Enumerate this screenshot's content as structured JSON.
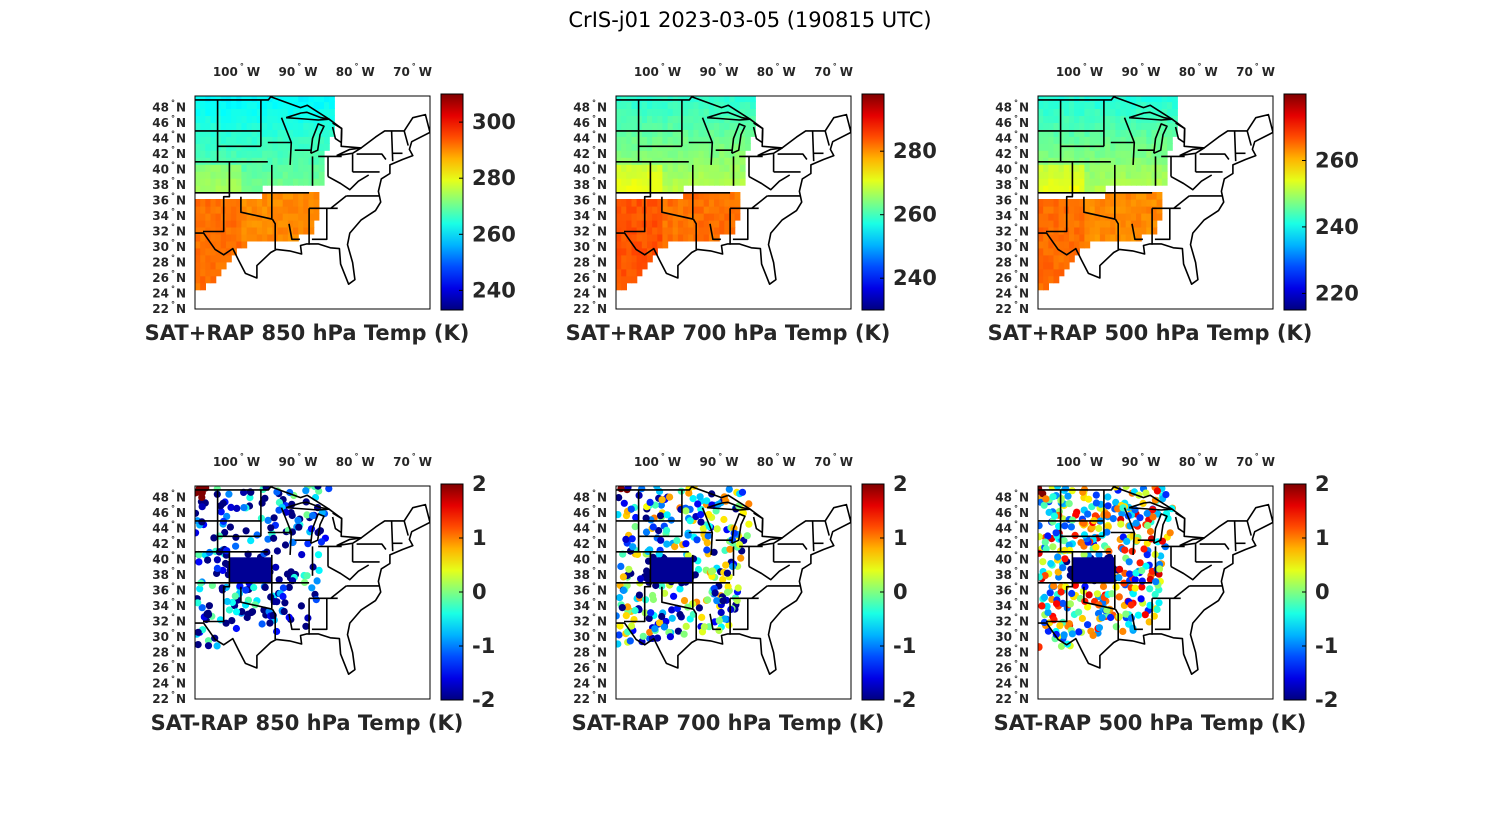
{
  "figure": {
    "title": "CrIS-j01 2023-03-05 (190815 UTC)"
  },
  "colormap": "jet",
  "map_extent": {
    "lon": [
      -108,
      -67
    ],
    "lat": [
      22,
      49.5
    ]
  },
  "lon_ticks": [
    {
      "value": -100,
      "num": "100",
      "hemi": "W"
    },
    {
      "value": -90,
      "num": "90",
      "hemi": "W"
    },
    {
      "value": -80,
      "num": "80",
      "hemi": "W"
    },
    {
      "value": -70,
      "num": "70",
      "hemi": "W"
    }
  ],
  "lat_ticks": [
    {
      "value": 48,
      "num": "48",
      "hemi": "N"
    },
    {
      "value": 46,
      "num": "46",
      "hemi": "N"
    },
    {
      "value": 44,
      "num": "44",
      "hemi": "N"
    },
    {
      "value": 42,
      "num": "42",
      "hemi": "N"
    },
    {
      "value": 40,
      "num": "40",
      "hemi": "N"
    },
    {
      "value": 38,
      "num": "38",
      "hemi": "N"
    },
    {
      "value": 36,
      "num": "36",
      "hemi": "N"
    },
    {
      "value": 34,
      "num": "34",
      "hemi": "N"
    },
    {
      "value": 32,
      "num": "32",
      "hemi": "N"
    },
    {
      "value": 30,
      "num": "30",
      "hemi": "N"
    },
    {
      "value": 28,
      "num": "28",
      "hemi": "N"
    },
    {
      "value": 26,
      "num": "26",
      "hemi": "N"
    },
    {
      "value": 24,
      "num": "24",
      "hemi": "N"
    },
    {
      "value": 22,
      "num": "22",
      "hemi": "N"
    }
  ],
  "panels": [
    {
      "id": "sat-rap-sum-850",
      "label": "SAT+RAP 850 hPa Temp (K)",
      "kind": "field",
      "clim": [
        233,
        310
      ],
      "cb_ticks": [
        {
          "v": 300,
          "t": "300"
        },
        {
          "v": 280,
          "t": "280"
        },
        {
          "v": 260,
          "t": "260"
        },
        {
          "v": 240,
          "t": "240"
        }
      ],
      "north_value": 265,
      "south_value": 290
    },
    {
      "id": "sat-rap-sum-700",
      "label": "SAT+RAP 700 hPa Temp (K)",
      "kind": "field",
      "clim": [
        230,
        298
      ],
      "cb_ticks": [
        {
          "v": 280,
          "t": "280"
        },
        {
          "v": 260,
          "t": "260"
        },
        {
          "v": 240,
          "t": "240"
        }
      ],
      "north_value": 262,
      "south_value": 282
    },
    {
      "id": "sat-rap-sum-500",
      "label": "SAT+RAP 500 hPa Temp (K)",
      "kind": "field",
      "clim": [
        215,
        280
      ],
      "cb_ticks": [
        {
          "v": 260,
          "t": "260"
        },
        {
          "v": 240,
          "t": "240"
        },
        {
          "v": 220,
          "t": "220"
        }
      ],
      "north_value": 245,
      "south_value": 263
    },
    {
      "id": "sat-rap-diff-850",
      "label": "SAT-RAP 850 hPa Temp (K)",
      "kind": "diff",
      "clim": [
        -2,
        2
      ],
      "cb_ticks": [
        {
          "v": 2,
          "t": "2"
        },
        {
          "v": 1,
          "t": "1"
        },
        {
          "v": 0,
          "t": "0"
        },
        {
          "v": -1,
          "t": "-1"
        },
        {
          "v": -2,
          "t": "-2"
        }
      ],
      "bias": -1.6,
      "density": 0.45
    },
    {
      "id": "sat-rap-diff-700",
      "label": "SAT-RAP 700 hPa Temp (K)",
      "kind": "diff",
      "clim": [
        -2,
        2
      ],
      "cb_ticks": [
        {
          "v": 2,
          "t": "2"
        },
        {
          "v": 1,
          "t": "1"
        },
        {
          "v": 0,
          "t": "0"
        },
        {
          "v": -1,
          "t": "-1"
        },
        {
          "v": -2,
          "t": "-2"
        }
      ],
      "bias": -0.6,
      "density": 0.6
    },
    {
      "id": "sat-rap-diff-500",
      "label": "SAT-RAP 500 hPa Temp (K)",
      "kind": "diff",
      "clim": [
        -2,
        2
      ],
      "cb_ticks": [
        {
          "v": 2,
          "t": "2"
        },
        {
          "v": 1,
          "t": "1"
        },
        {
          "v": 0,
          "t": "0"
        },
        {
          "v": -1,
          "t": "-1"
        },
        {
          "v": -2,
          "t": "-2"
        }
      ],
      "bias": 0.1,
      "density": 0.75
    }
  ]
}
